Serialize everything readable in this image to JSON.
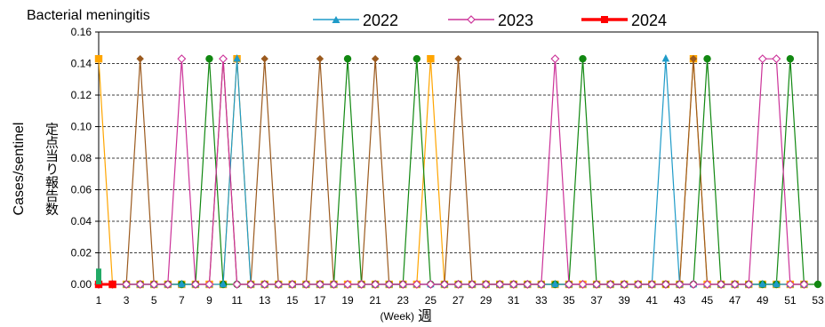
{
  "chart_data": {
    "type": "line",
    "title": "Bacterial meningitis",
    "ylabel_en": "Cases/sentinel",
    "ylabel_jp": "定点当り報告数",
    "xlabel_en": "(Week)",
    "xlabel_jp": "週",
    "xlim": [
      1,
      53
    ],
    "ylim": [
      0,
      0.16
    ],
    "yticks": [
      "0.00",
      "0.02",
      "0.04",
      "0.06",
      "0.08",
      "0.10",
      "0.12",
      "0.14",
      "0.16"
    ],
    "xticks": [
      "1",
      "3",
      "5",
      "7",
      "9",
      "11",
      "13",
      "15",
      "17",
      "19",
      "21",
      "23",
      "25",
      "27",
      "29",
      "31",
      "33",
      "35",
      "37",
      "39",
      "41",
      "43",
      "45",
      "47",
      "49",
      "51",
      "53"
    ],
    "grid": "horizontal-dashed",
    "legend": [
      {
        "name": "2022",
        "color": "#1f9bc8",
        "marker": "triangle"
      },
      {
        "name": "2023",
        "color": "#cc3399",
        "marker": "diamond-open"
      },
      {
        "name": "2024",
        "color": "#ff0000",
        "marker": "square"
      }
    ],
    "series": [
      {
        "color": "#ffa500",
        "marker": "square",
        "points": [
          [
            1,
            0.143
          ],
          [
            2,
            0
          ],
          [
            3,
            0
          ],
          [
            4,
            0
          ],
          [
            5,
            0
          ],
          [
            6,
            0
          ],
          [
            7,
            0
          ],
          [
            8,
            0
          ],
          [
            9,
            0
          ],
          [
            10,
            0
          ],
          [
            11,
            0.143
          ],
          [
            12,
            0
          ],
          [
            13,
            0
          ],
          [
            14,
            0
          ],
          [
            15,
            0
          ],
          [
            16,
            0
          ],
          [
            17,
            0
          ],
          [
            18,
            0
          ],
          [
            19,
            0
          ],
          [
            20,
            0
          ],
          [
            21,
            0
          ],
          [
            22,
            0
          ],
          [
            23,
            0
          ],
          [
            24,
            0
          ],
          [
            25,
            0.143
          ],
          [
            26,
            0
          ],
          [
            27,
            0
          ],
          [
            28,
            0
          ],
          [
            29,
            0
          ],
          [
            30,
            0
          ],
          [
            31,
            0
          ],
          [
            32,
            0
          ],
          [
            33,
            0
          ],
          [
            34,
            0
          ],
          [
            35,
            0
          ],
          [
            36,
            0
          ],
          [
            37,
            0
          ],
          [
            38,
            0
          ],
          [
            39,
            0
          ],
          [
            40,
            0
          ],
          [
            41,
            0
          ],
          [
            42,
            0
          ],
          [
            43,
            0
          ],
          [
            44,
            0.143
          ],
          [
            45,
            0
          ],
          [
            46,
            0
          ],
          [
            47,
            0
          ],
          [
            48,
            0
          ],
          [
            49,
            0
          ],
          [
            50,
            0
          ],
          [
            51,
            0
          ],
          [
            52,
            0
          ]
        ]
      },
      {
        "color": "#9b5a1e",
        "marker": "diamond",
        "points": [
          [
            1,
            0
          ],
          [
            2,
            0
          ],
          [
            3,
            0
          ],
          [
            4,
            0.143
          ],
          [
            5,
            0
          ],
          [
            6,
            0
          ],
          [
            7,
            0
          ],
          [
            8,
            0
          ],
          [
            9,
            0
          ],
          [
            10,
            0.143
          ],
          [
            11,
            0
          ],
          [
            12,
            0
          ],
          [
            13,
            0.143
          ],
          [
            14,
            0
          ],
          [
            15,
            0
          ],
          [
            16,
            0
          ],
          [
            17,
            0.143
          ],
          [
            18,
            0
          ],
          [
            19,
            0
          ],
          [
            20,
            0
          ],
          [
            21,
            0.143
          ],
          [
            22,
            0
          ],
          [
            23,
            0
          ],
          [
            24,
            0
          ],
          [
            25,
            0
          ],
          [
            26,
            0
          ],
          [
            27,
            0.143
          ],
          [
            28,
            0
          ],
          [
            29,
            0
          ],
          [
            30,
            0
          ],
          [
            31,
            0
          ],
          [
            32,
            0
          ],
          [
            33,
            0
          ],
          [
            34,
            0
          ],
          [
            35,
            0
          ],
          [
            36,
            0
          ],
          [
            37,
            0
          ],
          [
            38,
            0
          ],
          [
            39,
            0
          ],
          [
            40,
            0
          ],
          [
            41,
            0
          ],
          [
            42,
            0
          ],
          [
            43,
            0
          ],
          [
            44,
            0.143
          ],
          [
            45,
            0
          ],
          [
            46,
            0
          ],
          [
            47,
            0
          ],
          [
            48,
            0
          ],
          [
            49,
            0
          ],
          [
            50,
            0
          ],
          [
            51,
            0
          ],
          [
            52,
            0
          ]
        ]
      },
      {
        "color": "#118811",
        "marker": "circle",
        "points": [
          [
            1,
            0
          ],
          [
            2,
            0
          ],
          [
            3,
            0
          ],
          [
            4,
            0
          ],
          [
            5,
            0
          ],
          [
            6,
            0
          ],
          [
            7,
            0
          ],
          [
            8,
            0
          ],
          [
            9,
            0.143
          ],
          [
            10,
            0
          ],
          [
            11,
            0
          ],
          [
            12,
            0
          ],
          [
            13,
            0
          ],
          [
            14,
            0
          ],
          [
            15,
            0
          ],
          [
            16,
            0
          ],
          [
            17,
            0
          ],
          [
            18,
            0
          ],
          [
            19,
            0.143
          ],
          [
            20,
            0
          ],
          [
            21,
            0
          ],
          [
            22,
            0
          ],
          [
            23,
            0
          ],
          [
            24,
            0.143
          ],
          [
            25,
            0
          ],
          [
            26,
            0
          ],
          [
            27,
            0
          ],
          [
            28,
            0
          ],
          [
            29,
            0
          ],
          [
            30,
            0
          ],
          [
            31,
            0
          ],
          [
            32,
            0
          ],
          [
            33,
            0
          ],
          [
            34,
            0
          ],
          [
            35,
            0
          ],
          [
            36,
            0.143
          ],
          [
            37,
            0
          ],
          [
            38,
            0
          ],
          [
            39,
            0
          ],
          [
            40,
            0
          ],
          [
            41,
            0
          ],
          [
            42,
            0
          ],
          [
            43,
            0
          ],
          [
            44,
            0
          ],
          [
            45,
            0.143
          ],
          [
            46,
            0
          ],
          [
            47,
            0
          ],
          [
            48,
            0
          ],
          [
            49,
            0
          ],
          [
            50,
            0
          ],
          [
            51,
            0.143
          ],
          [
            52,
            0
          ],
          [
            53,
            0
          ]
        ]
      },
      {
        "color": "#1f9bc8",
        "marker": "triangle",
        "points": [
          [
            1,
            0
          ],
          [
            2,
            0
          ],
          [
            3,
            0
          ],
          [
            4,
            0
          ],
          [
            5,
            0
          ],
          [
            6,
            0
          ],
          [
            7,
            0
          ],
          [
            8,
            0
          ],
          [
            9,
            0
          ],
          [
            10,
            0
          ],
          [
            11,
            0.143
          ],
          [
            12,
            0
          ],
          [
            13,
            0
          ],
          [
            14,
            0
          ],
          [
            15,
            0
          ],
          [
            16,
            0
          ],
          [
            17,
            0
          ],
          [
            18,
            0
          ],
          [
            19,
            0
          ],
          [
            20,
            0
          ],
          [
            21,
            0
          ],
          [
            22,
            0
          ],
          [
            23,
            0
          ],
          [
            24,
            0
          ],
          [
            25,
            0
          ],
          [
            26,
            0
          ],
          [
            27,
            0
          ],
          [
            28,
            0
          ],
          [
            29,
            0
          ],
          [
            30,
            0
          ],
          [
            31,
            0
          ],
          [
            32,
            0
          ],
          [
            33,
            0
          ],
          [
            34,
            0
          ],
          [
            35,
            0
          ],
          [
            36,
            0
          ],
          [
            37,
            0
          ],
          [
            38,
            0
          ],
          [
            39,
            0
          ],
          [
            40,
            0
          ],
          [
            41,
            0
          ],
          [
            42,
            0.143
          ],
          [
            43,
            0
          ],
          [
            44,
            0
          ],
          [
            45,
            0
          ],
          [
            46,
            0
          ],
          [
            47,
            0
          ],
          [
            48,
            0
          ],
          [
            49,
            0
          ],
          [
            50,
            0
          ],
          [
            51,
            0
          ],
          [
            52,
            0
          ]
        ]
      },
      {
        "color": "#cc3399",
        "marker": "diamond-open",
        "points": [
          [
            1,
            0
          ],
          [
            2,
            0
          ],
          [
            3,
            0
          ],
          [
            4,
            0
          ],
          [
            5,
            0
          ],
          [
            6,
            0
          ],
          [
            7,
            0.143
          ],
          [
            8,
            0
          ],
          [
            9,
            0
          ],
          [
            10,
            0.143
          ],
          [
            11,
            0
          ],
          [
            12,
            0
          ],
          [
            13,
            0
          ],
          [
            14,
            0
          ],
          [
            15,
            0
          ],
          [
            16,
            0
          ],
          [
            17,
            0
          ],
          [
            18,
            0
          ],
          [
            19,
            0
          ],
          [
            20,
            0
          ],
          [
            21,
            0
          ],
          [
            22,
            0
          ],
          [
            23,
            0
          ],
          [
            24,
            0
          ],
          [
            25,
            0
          ],
          [
            26,
            0
          ],
          [
            27,
            0
          ],
          [
            28,
            0
          ],
          [
            29,
            0
          ],
          [
            30,
            0
          ],
          [
            31,
            0
          ],
          [
            32,
            0
          ],
          [
            33,
            0
          ],
          [
            34,
            0.143
          ],
          [
            35,
            0
          ],
          [
            36,
            0
          ],
          [
            37,
            0
          ],
          [
            38,
            0
          ],
          [
            39,
            0
          ],
          [
            40,
            0
          ],
          [
            41,
            0
          ],
          [
            42,
            0
          ],
          [
            43,
            0
          ],
          [
            44,
            0
          ],
          [
            45,
            0
          ],
          [
            46,
            0
          ],
          [
            47,
            0
          ],
          [
            48,
            0
          ],
          [
            49,
            0.143
          ],
          [
            50,
            0.143
          ],
          [
            51,
            0
          ],
          [
            52,
            0
          ]
        ]
      },
      {
        "color": "#ff0000",
        "marker": "square",
        "points": [
          [
            1,
            0
          ],
          [
            2,
            0
          ]
        ]
      },
      {
        "color": "#22aa66",
        "marker": "square",
        "points": [
          [
            1,
            0.01
          ]
        ]
      }
    ]
  }
}
